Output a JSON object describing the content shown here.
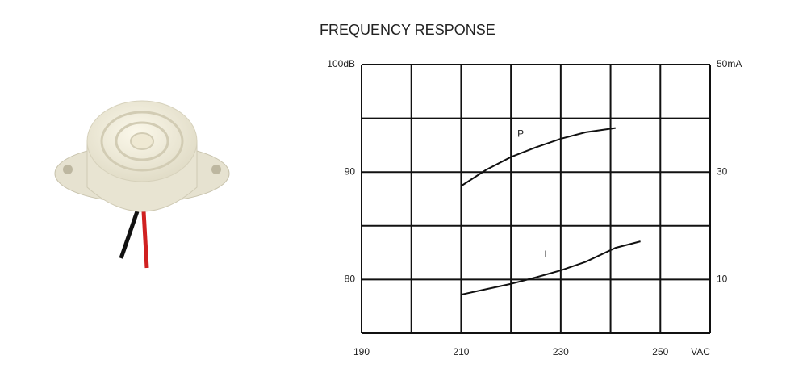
{
  "chart_data": {
    "type": "line",
    "title": "FREQUENCY RESPONSE",
    "x_label": "VAC",
    "x": [
      210,
      215,
      220,
      225,
      230,
      235,
      241,
      246
    ],
    "series": [
      {
        "name": "P",
        "color": "#111111",
        "values": [
          88.7,
          90.2,
          91.4,
          92.3,
          93.1,
          93.7,
          94.1,
          null
        ]
      },
      {
        "name": "I",
        "color": "#111111",
        "axis": "y2",
        "values": [
          7.2,
          8.2,
          9.2,
          10.4,
          11.7,
          13.3,
          15.9,
          17.1
        ]
      }
    ],
    "xlim": [
      190,
      260
    ],
    "xticks": [
      190,
      210,
      230,
      250
    ],
    "xgrid": [
      190,
      200,
      210,
      220,
      230,
      240,
      250,
      260
    ],
    "ylim": [
      75,
      100
    ],
    "yticks": [
      80,
      90,
      {
        "value": 100,
        "label": "100dB"
      }
    ],
    "ygrid": [
      75,
      80,
      85,
      90,
      95,
      100
    ],
    "y2lim": [
      0,
      50
    ],
    "y2ticks": [
      10,
      30,
      {
        "value": 50,
        "label": "50mA"
      }
    ],
    "grid": true
  }
}
